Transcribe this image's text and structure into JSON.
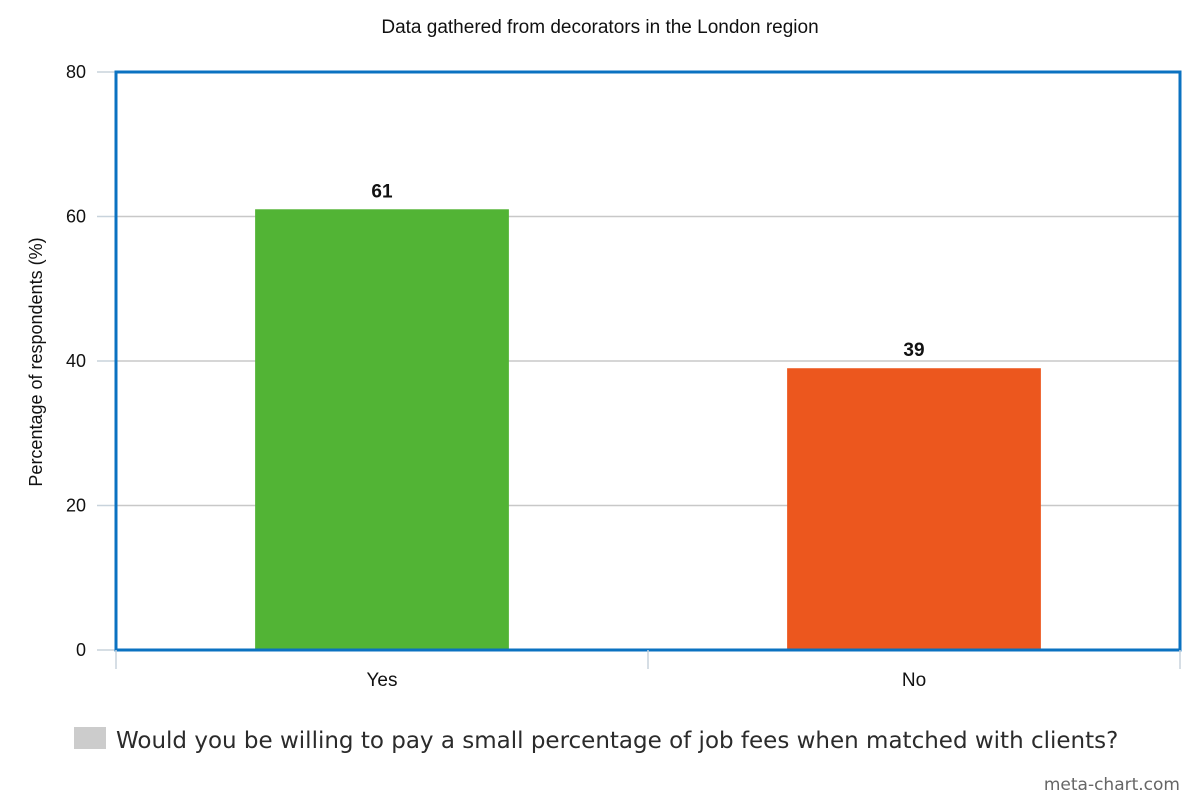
{
  "chart_data": {
    "type": "bar",
    "title": "Data gathered from decorators in the London region",
    "xlabel": "",
    "ylabel": "Percentage of respondents (%)",
    "categories": [
      "Yes",
      "No"
    ],
    "series": [
      {
        "name": "Would you be willing to pay a small percentage of job fees when matched with clients?",
        "values": [
          61,
          39
        ],
        "data_labels": [
          "61",
          "39"
        ]
      }
    ],
    "bar_colors": [
      "#52b435",
      "#ec571e"
    ],
    "legend_color": "#cccccc",
    "ylim": [
      0,
      80
    ],
    "yticks": [
      0,
      20,
      40,
      60,
      80
    ],
    "grid": true,
    "legend_position": "bottom-left",
    "frame_color": "#0b72c1"
  },
  "credit": "meta-chart.com"
}
